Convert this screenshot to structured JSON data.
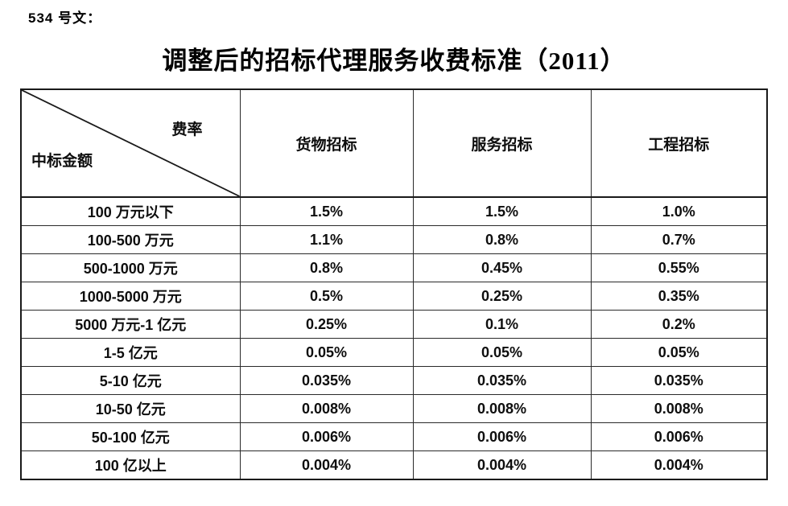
{
  "doc": {
    "ref_label": "534 号文：",
    "title": "调整后的招标代理服务收费标准（2011）"
  },
  "table": {
    "corner": {
      "top_right": "费率",
      "bottom_left": "中标金额"
    },
    "columns": [
      "货物招标",
      "服务招标",
      "工程招标"
    ],
    "rows": [
      {
        "label": "100 万元以下",
        "values": [
          "1.5%",
          "1.5%",
          "1.0%"
        ]
      },
      {
        "label": "100-500 万元",
        "values": [
          "1.1%",
          "0.8%",
          "0.7%"
        ]
      },
      {
        "label": "500-1000 万元",
        "values": [
          "0.8%",
          "0.45%",
          "0.55%"
        ]
      },
      {
        "label": "1000-5000 万元",
        "values": [
          "0.5%",
          "0.25%",
          "0.35%"
        ]
      },
      {
        "label": "5000 万元-1 亿元",
        "values": [
          "0.25%",
          "0.1%",
          "0.2%"
        ]
      },
      {
        "label": "1-5 亿元",
        "values": [
          "0.05%",
          "0.05%",
          "0.05%"
        ]
      },
      {
        "label": "5-10 亿元",
        "values": [
          "0.035%",
          "0.035%",
          "0.035%"
        ]
      },
      {
        "label": "10-50 亿元",
        "values": [
          "0.008%",
          "0.008%",
          "0.008%"
        ]
      },
      {
        "label": "50-100 亿元",
        "values": [
          "0.006%",
          "0.006%",
          "0.006%"
        ]
      },
      {
        "label": "100 亿以上",
        "values": [
          "0.004%",
          "0.004%",
          "0.004%"
        ]
      }
    ],
    "line_color": "#1a1a1a"
  }
}
